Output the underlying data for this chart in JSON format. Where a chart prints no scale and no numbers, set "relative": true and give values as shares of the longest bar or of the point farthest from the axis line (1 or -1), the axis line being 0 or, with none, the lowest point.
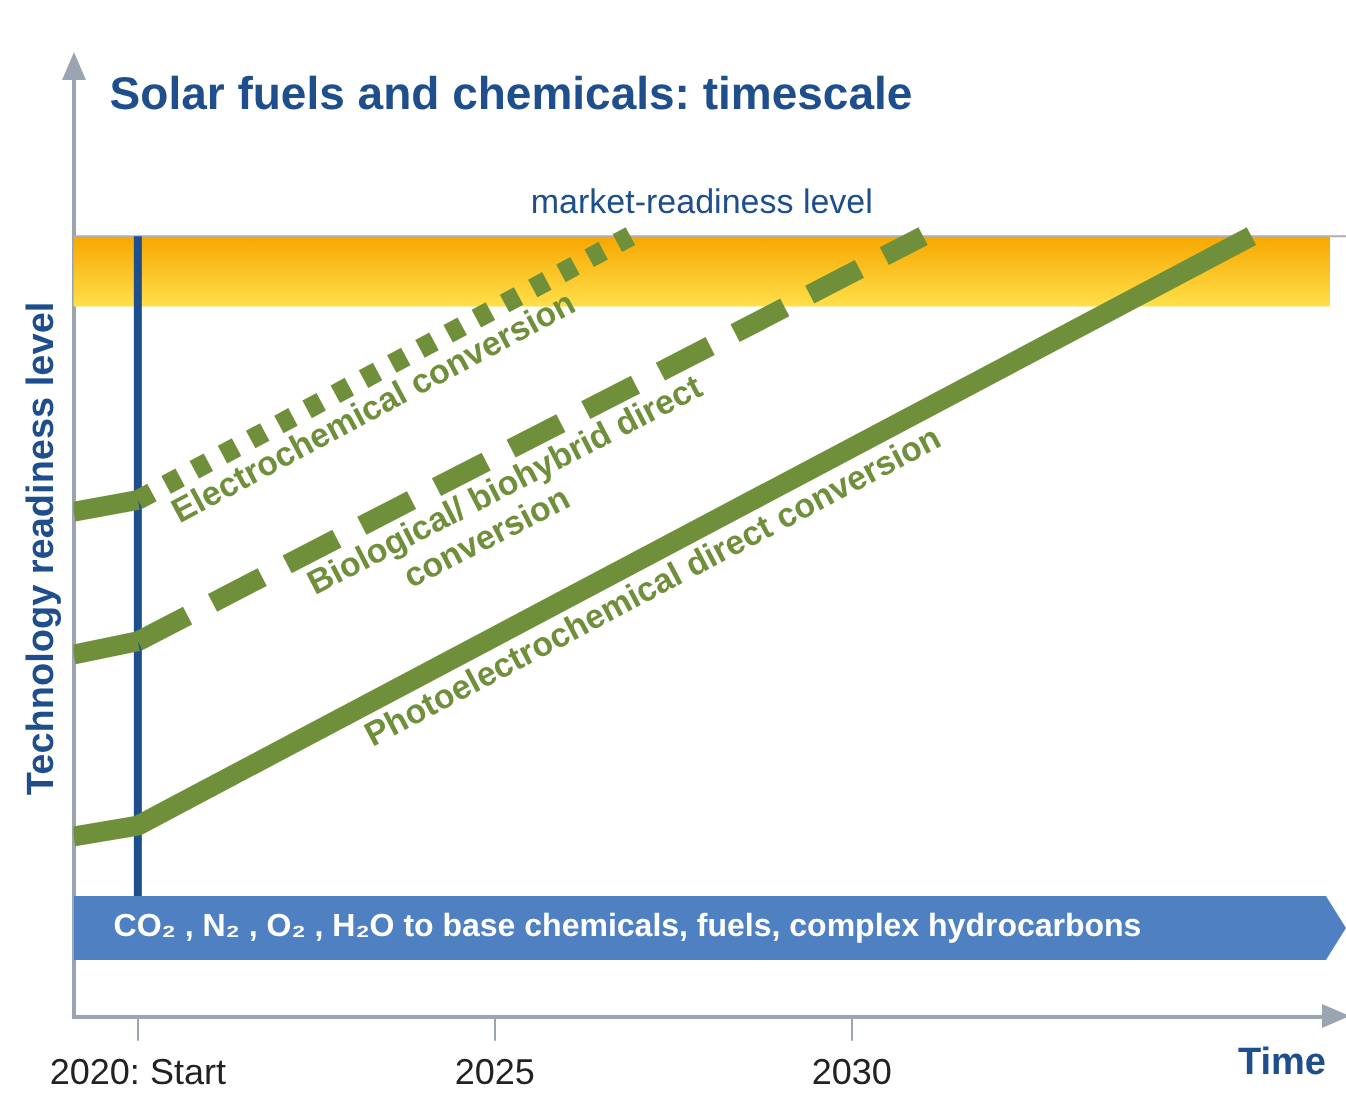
{
  "chart_data": {
    "type": "line",
    "title": "Solar fuels and chemicals: timescale",
    "xlabel": "Time",
    "ylabel": "Technology readiness level",
    "relative": true,
    "xlim": [
      2019.1,
      2036.7
    ],
    "xticks": [
      {
        "value": 2020,
        "label": "2020: Start"
      },
      2025,
      2030
    ],
    "grid": false,
    "legend": false,
    "marker": "none",
    "series": [
      {
        "color": "#6f8f3a",
        "line_style": "solid",
        "x": [
          2019.1,
          2020
        ],
        "values": [
          0.647,
          0.662
        ]
      },
      {
        "name": "Electrochemical conversion",
        "color": "#6f8f3a",
        "line_style": "dotted",
        "x": [
          2020,
          2026.9
        ],
        "values": [
          0.662,
          1
        ]
      },
      {
        "color": "#6f8f3a",
        "line_style": "solid",
        "x": [
          2019.1,
          2020
        ],
        "values": [
          0.464,
          0.481
        ]
      },
      {
        "name": "Biological/ biohybrid direct conversion",
        "color": "#6f8f3a",
        "line_style": "dashed",
        "x": [
          2020,
          2031
        ],
        "values": [
          0.481,
          1
        ]
      },
      {
        "name": "Photoelectrochemical direct conversion",
        "color": "#6f8f3a",
        "line_style": "solid",
        "x": [
          2019.1,
          2020,
          2035.6
        ],
        "values": [
          0.231,
          0.245,
          1
        ]
      }
    ],
    "bands": [
      {
        "axis": "y",
        "from": 0.91,
        "to": 1,
        "label": "market-readiness level",
        "color": "#f7a600"
      }
    ],
    "ref_lines": [
      {
        "axis": "x",
        "value": 2020,
        "color": "#1f4e8c"
      }
    ],
    "annotations": [
      "CO₂ , N₂ , O₂ , H₂O to base chemicals, fuels, complex hydrocarbons"
    ]
  }
}
